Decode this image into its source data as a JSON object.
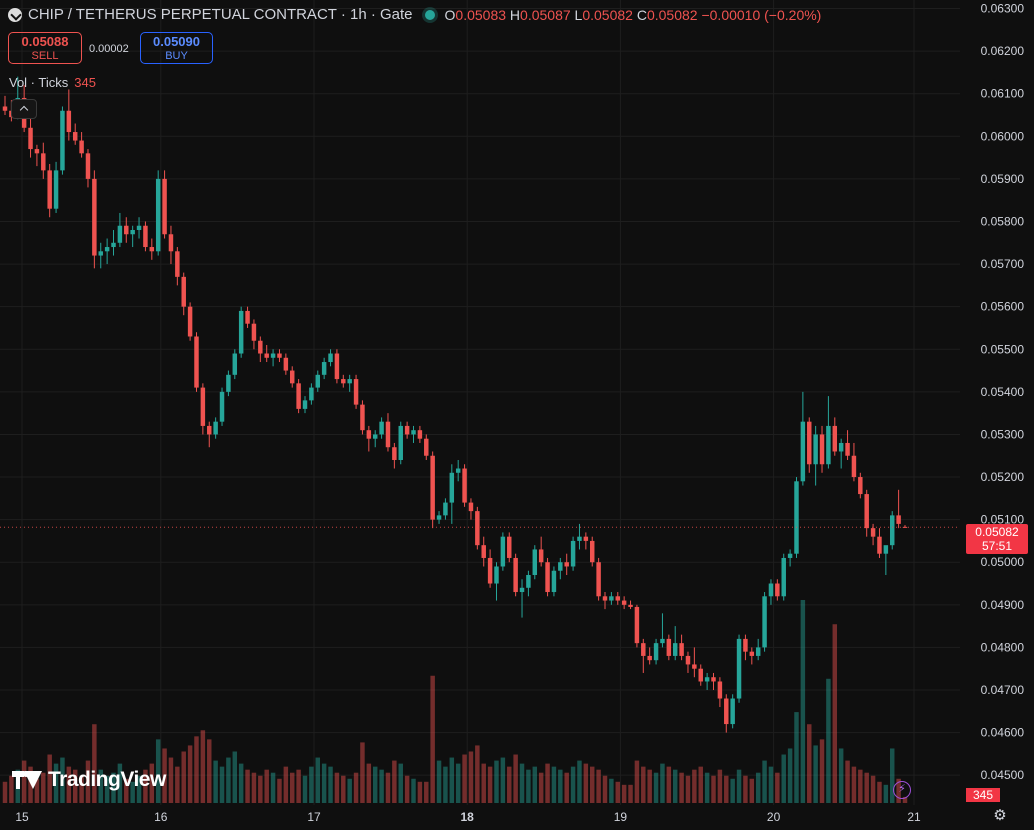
{
  "header": {
    "symbol": "CHIP / TETHERUS PERPETUAL CONTRACT · 1h · Gate",
    "ohlc": {
      "o_label": "O",
      "o": "0.05083",
      "h_label": "H",
      "h": "0.05087",
      "l_label": "L",
      "l": "0.05082",
      "c_label": "C",
      "c": "0.05082",
      "change": "−0.00010 (−0.20%)"
    }
  },
  "trade": {
    "sell_price": "0.05088",
    "sell_label": "SELL",
    "spread": "0.00002",
    "buy_price": "0.05090",
    "buy_label": "BUY"
  },
  "volume_legend": {
    "label": "Vol · Ticks",
    "value": "345"
  },
  "watermark": "TradingView",
  "last_price_tag": {
    "price": "0.05082",
    "countdown": "57:51"
  },
  "volume_tag": "345",
  "colors": {
    "up": "#26a69a",
    "down": "#ef5350",
    "background": "#0f0f0f",
    "grid": "#1e1e1e"
  },
  "icons": {
    "symbol": "chip-logo-icon",
    "status": "market-open-icon",
    "bolt": "lightning-icon",
    "settings": "gear-icon",
    "collapse": "chevron-up-icon"
  },
  "chart_data": {
    "type": "candlestick",
    "interval": "1h",
    "y_axis": {
      "ticks": [
        "0.04500",
        "0.04600",
        "0.04700",
        "0.04800",
        "0.04900",
        "0.05000",
        "0.05100",
        "0.05200",
        "0.05300",
        "0.05400",
        "0.05500",
        "0.05600",
        "0.05700",
        "0.05800",
        "0.05900",
        "0.06000",
        "0.06100",
        "0.06200",
        "0.06300"
      ],
      "range": [
        0.0443,
        0.0632
      ]
    },
    "x_axis": {
      "ticks": [
        "15",
        "16",
        "17",
        "18",
        "19",
        "20",
        "21"
      ],
      "bold": [
        "18"
      ]
    },
    "last_price": 0.05082,
    "grid": true,
    "candles": [
      [
        0.0607,
        0.06095,
        0.0605,
        0.0606,
        7
      ],
      [
        0.0606,
        0.06085,
        0.06035,
        0.06045,
        9
      ],
      [
        0.06045,
        0.0614,
        0.0604,
        0.0609,
        11
      ],
      [
        0.0609,
        0.0612,
        0.0601,
        0.0602,
        14
      ],
      [
        0.0602,
        0.0606,
        0.0595,
        0.0597,
        12
      ],
      [
        0.0597,
        0.0598,
        0.0593,
        0.0596,
        8
      ],
      [
        0.0596,
        0.05985,
        0.059,
        0.0592,
        10
      ],
      [
        0.0592,
        0.05935,
        0.0581,
        0.0583,
        16
      ],
      [
        0.0583,
        0.0594,
        0.0582,
        0.0592,
        13
      ],
      [
        0.0592,
        0.0607,
        0.0591,
        0.0606,
        15
      ],
      [
        0.0606,
        0.0611,
        0.0599,
        0.0601,
        12
      ],
      [
        0.0601,
        0.0603,
        0.0598,
        0.0599,
        11
      ],
      [
        0.0599,
        0.0601,
        0.0595,
        0.0596,
        9
      ],
      [
        0.0596,
        0.0597,
        0.0588,
        0.059,
        14
      ],
      [
        0.059,
        0.0592,
        0.0569,
        0.0572,
        26
      ],
      [
        0.0572,
        0.0575,
        0.0569,
        0.0573,
        11
      ],
      [
        0.0573,
        0.0576,
        0.057,
        0.0574,
        9
      ],
      [
        0.0574,
        0.0578,
        0.0572,
        0.0575,
        10
      ],
      [
        0.0575,
        0.0582,
        0.0574,
        0.0579,
        13
      ],
      [
        0.0579,
        0.0581,
        0.0575,
        0.0577,
        8
      ],
      [
        0.0577,
        0.0579,
        0.0574,
        0.0578,
        7
      ],
      [
        0.0578,
        0.0581,
        0.0576,
        0.0579,
        9
      ],
      [
        0.0579,
        0.058,
        0.0573,
        0.0574,
        11
      ],
      [
        0.0574,
        0.0576,
        0.0571,
        0.0573,
        13
      ],
      [
        0.0573,
        0.0592,
        0.0572,
        0.059,
        21
      ],
      [
        0.059,
        0.0592,
        0.0576,
        0.0577,
        18
      ],
      [
        0.0577,
        0.0579,
        0.057,
        0.0573,
        15
      ],
      [
        0.0573,
        0.0574,
        0.0565,
        0.0567,
        12
      ],
      [
        0.0567,
        0.0568,
        0.0558,
        0.056,
        17
      ],
      [
        0.056,
        0.0561,
        0.0552,
        0.0553,
        19
      ],
      [
        0.0553,
        0.0554,
        0.054,
        0.0541,
        22
      ],
      [
        0.0541,
        0.0542,
        0.053,
        0.0532,
        24
      ],
      [
        0.0532,
        0.0533,
        0.0527,
        0.053,
        21
      ],
      [
        0.053,
        0.0534,
        0.0529,
        0.0533,
        14
      ],
      [
        0.0533,
        0.0541,
        0.0532,
        0.054,
        12
      ],
      [
        0.054,
        0.0545,
        0.0539,
        0.0544,
        15
      ],
      [
        0.0544,
        0.055,
        0.0543,
        0.0549,
        17
      ],
      [
        0.0549,
        0.056,
        0.0548,
        0.0559,
        13
      ],
      [
        0.0559,
        0.056,
        0.0555,
        0.0556,
        11
      ],
      [
        0.0556,
        0.0557,
        0.055,
        0.0552,
        10
      ],
      [
        0.0552,
        0.0553,
        0.0547,
        0.0549,
        9
      ],
      [
        0.0549,
        0.0551,
        0.0547,
        0.0548,
        11
      ],
      [
        0.0548,
        0.055,
        0.0546,
        0.0549,
        10
      ],
      [
        0.0549,
        0.055,
        0.0547,
        0.0548,
        8
      ],
      [
        0.0548,
        0.0549,
        0.0544,
        0.0545,
        12
      ],
      [
        0.0545,
        0.0546,
        0.0541,
        0.0542,
        10
      ],
      [
        0.0542,
        0.0543,
        0.0535,
        0.0536,
        11
      ],
      [
        0.0536,
        0.0539,
        0.0535,
        0.0538,
        9
      ],
      [
        0.0538,
        0.0542,
        0.0537,
        0.0541,
        12
      ],
      [
        0.0541,
        0.0545,
        0.054,
        0.0544,
        15
      ],
      [
        0.0544,
        0.0548,
        0.0543,
        0.0547,
        13
      ],
      [
        0.0547,
        0.055,
        0.0546,
        0.0549,
        12
      ],
      [
        0.0549,
        0.055,
        0.0542,
        0.0543,
        10
      ],
      [
        0.0543,
        0.0544,
        0.0541,
        0.0542,
        9
      ],
      [
        0.0542,
        0.0544,
        0.054,
        0.0543,
        8
      ],
      [
        0.0543,
        0.0544,
        0.0536,
        0.0537,
        10
      ],
      [
        0.0537,
        0.0538,
        0.053,
        0.0531,
        20
      ],
      [
        0.0531,
        0.0532,
        0.0526,
        0.0529,
        13
      ],
      [
        0.0529,
        0.0531,
        0.0527,
        0.053,
        12
      ],
      [
        0.053,
        0.0534,
        0.0529,
        0.0533,
        11
      ],
      [
        0.0533,
        0.0535,
        0.0526,
        0.0527,
        10
      ],
      [
        0.0527,
        0.0528,
        0.0522,
        0.0524,
        14
      ],
      [
        0.0524,
        0.0533,
        0.0523,
        0.0532,
        13
      ],
      [
        0.0532,
        0.0533,
        0.0529,
        0.053,
        9
      ],
      [
        0.053,
        0.0532,
        0.0528,
        0.0531,
        8
      ],
      [
        0.0531,
        0.0532,
        0.0528,
        0.0529,
        7
      ],
      [
        0.0529,
        0.053,
        0.0524,
        0.0525,
        7
      ],
      [
        0.0525,
        0.0526,
        0.0508,
        0.051,
        42
      ],
      [
        0.051,
        0.0512,
        0.0509,
        0.0511,
        14
      ],
      [
        0.0511,
        0.0515,
        0.051,
        0.0514,
        12
      ],
      [
        0.0514,
        0.0523,
        0.0509,
        0.0521,
        15
      ],
      [
        0.0521,
        0.0524,
        0.0519,
        0.0522,
        13
      ],
      [
        0.0522,
        0.0523,
        0.0513,
        0.0514,
        16
      ],
      [
        0.0514,
        0.0515,
        0.051,
        0.0512,
        17
      ],
      [
        0.0512,
        0.0513,
        0.0503,
        0.0504,
        19
      ],
      [
        0.0504,
        0.0506,
        0.0499,
        0.0501,
        13
      ],
      [
        0.0501,
        0.0503,
        0.0494,
        0.0495,
        12
      ],
      [
        0.0495,
        0.05,
        0.0491,
        0.0499,
        14
      ],
      [
        0.0499,
        0.0507,
        0.0498,
        0.0506,
        15
      ],
      [
        0.0506,
        0.0507,
        0.05,
        0.0501,
        12
      ],
      [
        0.0501,
        0.0502,
        0.0492,
        0.0493,
        16
      ],
      [
        0.0493,
        0.0496,
        0.0487,
        0.0494,
        13
      ],
      [
        0.0494,
        0.0498,
        0.0492,
        0.0497,
        11
      ],
      [
        0.0497,
        0.0504,
        0.0496,
        0.0503,
        12
      ],
      [
        0.0503,
        0.0506,
        0.0499,
        0.05,
        10
      ],
      [
        0.05,
        0.0501,
        0.0492,
        0.0493,
        13
      ],
      [
        0.0493,
        0.0499,
        0.0492,
        0.0498,
        12
      ],
      [
        0.0498,
        0.0501,
        0.0496,
        0.05,
        11
      ],
      [
        0.05,
        0.0502,
        0.0497,
        0.0499,
        10
      ],
      [
        0.0499,
        0.0506,
        0.0498,
        0.0505,
        12
      ],
      [
        0.0505,
        0.0509,
        0.0503,
        0.0506,
        14
      ],
      [
        0.0506,
        0.0507,
        0.0503,
        0.0505,
        13
      ],
      [
        0.0505,
        0.0506,
        0.0499,
        0.05,
        12
      ],
      [
        0.05,
        0.0501,
        0.0491,
        0.0492,
        11
      ],
      [
        0.0492,
        0.0493,
        0.0489,
        0.0491,
        9
      ],
      [
        0.0491,
        0.0493,
        0.049,
        0.0492,
        8
      ],
      [
        0.0492,
        0.0493,
        0.049,
        0.0491,
        7
      ],
      [
        0.0491,
        0.0492,
        0.0489,
        0.049,
        6
      ],
      [
        0.049,
        0.0491,
        0.0489,
        0.04895,
        6
      ],
      [
        0.04895,
        0.049,
        0.048,
        0.0481,
        14
      ],
      [
        0.0481,
        0.0482,
        0.0474,
        0.0478,
        12
      ],
      [
        0.0478,
        0.048,
        0.0476,
        0.0477,
        11
      ],
      [
        0.0477,
        0.0482,
        0.0476,
        0.0481,
        10
      ],
      [
        0.0481,
        0.0488,
        0.048,
        0.0482,
        13
      ],
      [
        0.0482,
        0.0483,
        0.0477,
        0.0478,
        12
      ],
      [
        0.0478,
        0.0485,
        0.0477,
        0.0481,
        11
      ],
      [
        0.0481,
        0.0483,
        0.0477,
        0.0478,
        10
      ],
      [
        0.0478,
        0.0479,
        0.0474,
        0.0476,
        9
      ],
      [
        0.0476,
        0.048,
        0.0473,
        0.0475,
        11
      ],
      [
        0.0475,
        0.0476,
        0.0471,
        0.0472,
        12
      ],
      [
        0.0472,
        0.0474,
        0.047,
        0.0473,
        10
      ],
      [
        0.0473,
        0.0474,
        0.047,
        0.0472,
        9
      ],
      [
        0.0472,
        0.0473,
        0.0466,
        0.0468,
        11
      ],
      [
        0.0468,
        0.0469,
        0.046,
        0.0462,
        9
      ],
      [
        0.0462,
        0.0469,
        0.0461,
        0.0468,
        8
      ],
      [
        0.0468,
        0.0483,
        0.0467,
        0.0482,
        11
      ],
      [
        0.0482,
        0.0483,
        0.0477,
        0.0479,
        9
      ],
      [
        0.0479,
        0.048,
        0.0476,
        0.0478,
        8
      ],
      [
        0.0478,
        0.0482,
        0.0477,
        0.048,
        10
      ],
      [
        0.048,
        0.0493,
        0.0479,
        0.0492,
        14
      ],
      [
        0.0492,
        0.0496,
        0.049,
        0.0495,
        12
      ],
      [
        0.0495,
        0.0496,
        0.0491,
        0.0492,
        10
      ],
      [
        0.0492,
        0.0502,
        0.0491,
        0.0501,
        16
      ],
      [
        0.0501,
        0.0503,
        0.0499,
        0.0502,
        18
      ],
      [
        0.0502,
        0.052,
        0.0501,
        0.0519,
        30
      ],
      [
        0.0519,
        0.054,
        0.0518,
        0.0533,
        67
      ],
      [
        0.0533,
        0.0534,
        0.0521,
        0.0523,
        26
      ],
      [
        0.0523,
        0.0532,
        0.0518,
        0.053,
        19
      ],
      [
        0.053,
        0.0532,
        0.0521,
        0.0523,
        21
      ],
      [
        0.0523,
        0.0539,
        0.0522,
        0.0532,
        41
      ],
      [
        0.0532,
        0.0534,
        0.0525,
        0.0526,
        59
      ],
      [
        0.0526,
        0.0529,
        0.0522,
        0.0528,
        18
      ],
      [
        0.0528,
        0.0531,
        0.0524,
        0.0525,
        14
      ],
      [
        0.0525,
        0.0528,
        0.0519,
        0.052,
        12
      ],
      [
        0.052,
        0.0521,
        0.0515,
        0.0516,
        11
      ],
      [
        0.0516,
        0.0517,
        0.0506,
        0.0508,
        10
      ],
      [
        0.0508,
        0.0509,
        0.0504,
        0.0506,
        9
      ],
      [
        0.0506,
        0.0508,
        0.0501,
        0.0502,
        7
      ],
      [
        0.0502,
        0.0503,
        0.0497,
        0.0504,
        6
      ],
      [
        0.0504,
        0.0512,
        0.0503,
        0.0511,
        18
      ],
      [
        0.0511,
        0.0517,
        0.0508,
        0.0509,
        8
      ],
      [
        0.05083,
        0.05087,
        0.05082,
        0.05082,
        2
      ]
    ]
  }
}
